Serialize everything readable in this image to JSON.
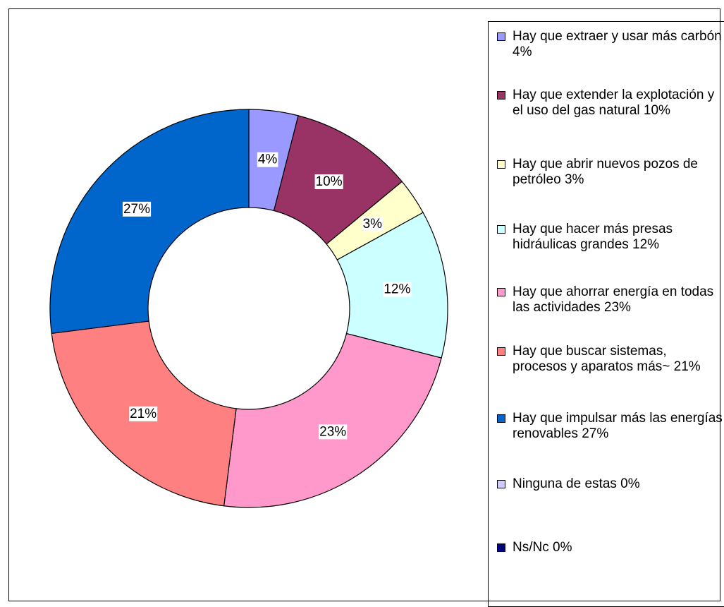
{
  "chart_data": {
    "type": "donut",
    "categories": [
      "Hay que extraer y usar más carbón   4%",
      "Hay que extender la explotación y el uso del gas natural 10%",
      "Hay que abrir nuevos pozos de petróleo 3%",
      "Hay que hacer más presas hidráulicas grandes 12%",
      "Hay que ahorrar energía en todas las actividades 23%",
      "Hay que buscar sistemas, procesos y aparatos más~ 21%",
      "Hay que impulsar más las energías renovables 27%",
      "Ninguna de estas 0%",
      "Ns/Nc 0%"
    ],
    "values": [
      4,
      10,
      3,
      12,
      23,
      21,
      27,
      0,
      0
    ],
    "value_labels": [
      "4%",
      "10%",
      "3%",
      "12%",
      "23%",
      "21%",
      "27%",
      null,
      null
    ],
    "colors": [
      "#9999ff",
      "#993366",
      "#ffffcc",
      "#ccffff",
      "#ff99cc",
      "#ff8080",
      "#0066cc",
      "#ccccff",
      "#000080"
    ],
    "legend": "right"
  }
}
